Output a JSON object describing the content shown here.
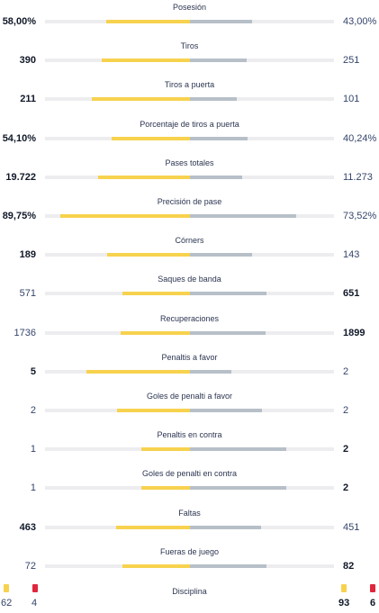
{
  "stats": [
    {
      "label": "Posesión",
      "home": "58,00%",
      "away": "43,00%",
      "home_bold": true,
      "away_bold": false,
      "home_share": 0.58,
      "away_share": 0.43
    },
    {
      "label": "Tiros",
      "home": "390",
      "away": "251",
      "home_bold": true,
      "away_bold": false,
      "home_share": 0.608,
      "away_share": 0.392
    },
    {
      "label": "Tiros a puerta",
      "home": "211",
      "away": "101",
      "home_bold": true,
      "away_bold": false,
      "home_share": 0.676,
      "away_share": 0.324
    },
    {
      "label": "Porcentaje de tiros a puerta",
      "home": "54,10%",
      "away": "40,24%",
      "home_bold": true,
      "away_bold": false,
      "home_share": 0.541,
      "away_share": 0.4024
    },
    {
      "label": "Pases totales",
      "home": "19.722",
      "away": "11.273",
      "home_bold": true,
      "away_bold": false,
      "home_share": 0.636,
      "away_share": 0.364
    },
    {
      "label": "Precisión de pase",
      "home": "89,75%",
      "away": "73,52%",
      "home_bold": true,
      "away_bold": false,
      "home_share": 0.8975,
      "away_share": 0.7352
    },
    {
      "label": "Córners",
      "home": "189",
      "away": "143",
      "home_bold": true,
      "away_bold": false,
      "home_share": 0.569,
      "away_share": 0.431
    },
    {
      "label": "Saques de banda",
      "home": "571",
      "away": "651",
      "home_bold": false,
      "away_bold": true,
      "home_share": 0.467,
      "away_share": 0.533
    },
    {
      "label": "Recuperaciones",
      "home": "1736",
      "away": "1899",
      "home_bold": false,
      "away_bold": true,
      "home_share": 0.478,
      "away_share": 0.522
    },
    {
      "label": "Penaltis a favor",
      "home": "5",
      "away": "2",
      "home_bold": true,
      "away_bold": false,
      "home_share": 0.714,
      "away_share": 0.286
    },
    {
      "label": "Goles de penalti a favor",
      "home": "2",
      "away": "2",
      "home_bold": false,
      "away_bold": false,
      "home_share": 0.5,
      "away_share": 0.5
    },
    {
      "label": "Penaltis en contra",
      "home": "1",
      "away": "2",
      "home_bold": false,
      "away_bold": true,
      "home_share": 0.333,
      "away_share": 0.667
    },
    {
      "label": "Goles de penalti en contra",
      "home": "1",
      "away": "2",
      "home_bold": false,
      "away_bold": true,
      "home_share": 0.333,
      "away_share": 0.667
    },
    {
      "label": "Faltas",
      "home": "463",
      "away": "451",
      "home_bold": true,
      "away_bold": false,
      "home_share": 0.507,
      "away_share": 0.493
    },
    {
      "label": "Fueras de juego",
      "home": "72",
      "away": "82",
      "home_bold": false,
      "away_bold": true,
      "home_share": 0.468,
      "away_share": 0.532
    }
  ],
  "discipline": {
    "label": "Disciplina",
    "home_yellow": "62",
    "home_red": "4",
    "away_yellow": "93",
    "away_red": "6",
    "yellow_color": "#f7d24e",
    "red_color": "#e0263d"
  },
  "colors": {
    "home_bar": "#f7d24e",
    "away_bar": "#b7bfc8",
    "track": "#ededf0"
  }
}
